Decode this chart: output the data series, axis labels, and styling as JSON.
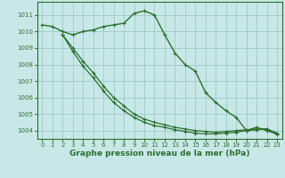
{
  "background_color": "#c8e8e8",
  "grid_color": "#a0c8c8",
  "line_color": "#2d6e2d",
  "marker_color": "#2d6e2d",
  "xlabel": "Graphe pression niveau de la mer (hPa)",
  "xlabel_fontsize": 6.5,
  "xlim": [
    -0.5,
    23.5
  ],
  "ylim": [
    1003.5,
    1011.8
  ],
  "yticks": [
    1004,
    1005,
    1006,
    1007,
    1008,
    1009,
    1010,
    1011
  ],
  "xticks": [
    0,
    1,
    2,
    3,
    4,
    5,
    6,
    7,
    8,
    9,
    10,
    11,
    12,
    13,
    14,
    15,
    16,
    17,
    18,
    19,
    20,
    21,
    22,
    23
  ],
  "series": [
    {
      "x": [
        0,
        1,
        2,
        3,
        4,
        5,
        6,
        7,
        8,
        9,
        10,
        11,
        12,
        13,
        14,
        15,
        16,
        17,
        18,
        19,
        20,
        21,
        22,
        23
      ],
      "y": [
        1010.4,
        1010.3,
        1010.0,
        1009.8,
        1010.0,
        1010.1,
        1010.3,
        1010.4,
        1010.5,
        1011.1,
        1011.25,
        1011.0,
        1009.8,
        1008.7,
        1008.0,
        1007.6,
        1006.3,
        1005.7,
        1005.2,
        1004.8,
        1004.0,
        1004.2,
        1004.0,
        1003.8
      ],
      "marker": true,
      "lw": 1.0
    },
    {
      "x": [
        2,
        3,
        4,
        5,
        6,
        7,
        8,
        9,
        10,
        11,
        12,
        13,
        14,
        15,
        16,
        17,
        18,
        19,
        20,
        21,
        22,
        23
      ],
      "y": [
        1009.8,
        1009.0,
        1008.2,
        1007.5,
        1006.7,
        1006.0,
        1005.5,
        1005.0,
        1004.7,
        1004.5,
        1004.35,
        1004.2,
        1004.1,
        1004.0,
        1003.95,
        1003.9,
        1003.95,
        1004.0,
        1004.05,
        1004.1,
        1004.1,
        1003.85
      ],
      "marker": true,
      "lw": 0.9
    },
    {
      "x": [
        2,
        3,
        4,
        5,
        6,
        7,
        8,
        9,
        10,
        11,
        12,
        13,
        14,
        15,
        16,
        17,
        18,
        19,
        20,
        21,
        22,
        23
      ],
      "y": [
        1009.8,
        1008.8,
        1007.9,
        1007.2,
        1006.4,
        1005.7,
        1005.2,
        1004.8,
        1004.5,
        1004.3,
        1004.2,
        1004.05,
        1003.95,
        1003.85,
        1003.8,
        1003.8,
        1003.85,
        1003.9,
        1004.0,
        1004.05,
        1004.1,
        1003.75
      ],
      "marker": true,
      "lw": 0.9
    }
  ]
}
